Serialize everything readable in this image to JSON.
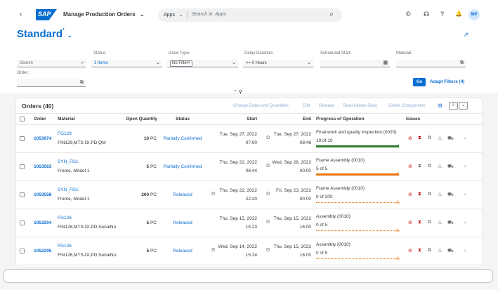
{
  "shell": {
    "back_icon": "‹",
    "logo_text": "SAP",
    "app_title": "Manage Production Orders",
    "title_chevron": "⌄",
    "search_scope": "Apps",
    "search_scope_chevron": "⌄",
    "search_placeholder": "Search in: Apps",
    "search_icon": "⌕",
    "icons": [
      "©",
      "☊",
      "?",
      "🔔"
    ],
    "avatar": "MP"
  },
  "variant": {
    "title": "Standard",
    "modified": "*",
    "chevron": "⌄",
    "share_icon": "⇗"
  },
  "filters": {
    "search": {
      "placeholder": "Search",
      "icon": "⌕"
    },
    "status": {
      "label": "Status:",
      "value": "3 Items",
      "icon": "⌄"
    },
    "issue_type": {
      "label": "Issue Type:",
      "token": "No Filter",
      "token_close": "×",
      "icon": "⌄"
    },
    "delay": {
      "label": "Delay Duration:",
      "value": ">= 0 Hours",
      "icon": "⌄"
    },
    "scheduled_start": {
      "label": "Scheduled Start:",
      "icon": "▦"
    },
    "material": {
      "label": "Material:",
      "icon": "⧉"
    },
    "order": {
      "label": "Order:",
      "icon": "⧉"
    },
    "go": "Go",
    "adapt": "Adapt Filters (4)",
    "collapse_icons": "⌃ ⚲"
  },
  "table": {
    "title": "Orders (40)",
    "toolbar": [
      "Change Dates and Quantities",
      "Edit",
      "Release",
      "Read Master Data",
      "Check Components"
    ],
    "gear_icon": "⚙",
    "export_icon": "⇩",
    "menu_icon": "⌄",
    "columns": {
      "order": "Order",
      "material": "Material",
      "open_qty": "Open Quantity",
      "status": "Status",
      "start": "Start",
      "end": "End",
      "progress": "Progress of Operation",
      "issues": "Issues"
    },
    "rows": [
      {
        "order": "1053974",
        "material": "FG129",
        "material_desc": "FIN129,MTS-DI,PD,QM",
        "qty": "10",
        "unit": "PC",
        "status": "Partially Confirmed",
        "start_date": "Tue, Sep 27, 2022",
        "start_time": "07:00",
        "end_date": "Tue, Sep 27, 2022",
        "end_time": "08:48",
        "operation": "Final work and quality inspection (0020)",
        "progress_text": "10 of 10",
        "progress": 1.0,
        "progress_color": "#2b7d2b",
        "progress_status": "✔",
        "status_color": "#2b7d2b",
        "start_clock": false,
        "end_clock": true
      },
      {
        "order": "1053563",
        "material": "SYN_FG1",
        "material_desc": "Frame, Model 1",
        "qty": "5",
        "unit": "PC",
        "status": "Partially Confirmed",
        "start_date": "Thu, Sep 22, 2022",
        "start_time": "06:44",
        "end_date": "Wed, Sep 28, 2022",
        "end_time": "00:00",
        "operation": "Frame Assembly (0010)",
        "progress_text": "5 of 5",
        "progress": 1.0,
        "progress_color": "#e9730c",
        "progress_status": "⚠",
        "status_color": "#e9730c",
        "start_clock": false,
        "end_clock": true
      },
      {
        "order": "1053558",
        "material": "SYN_FG1",
        "material_desc": "Frame, Model 1",
        "qty": "200",
        "unit": "PC",
        "status": "Released",
        "start_date": "Thu, Sep 22, 2022",
        "start_time": "22:20",
        "end_date": "Fri, Sep 23, 2022",
        "end_time": "00:00",
        "operation": "Frame Assembly (0010)",
        "progress_text": "0 of 200",
        "progress": 0,
        "progress_color": "#e9730c",
        "progress_status": "⚠",
        "status_color": "#e9730c",
        "start_clock": true,
        "end_clock": true
      },
      {
        "order": "1053204",
        "material": "FG126",
        "material_desc": "FIN126,MTS-DI,PD,SerialNo",
        "qty": "5",
        "unit": "PC",
        "status": "Released",
        "start_date": "Thu, Sep 15, 2022",
        "start_time": "15:23",
        "end_date": "Thu, Sep 15, 2022",
        "end_time": "16:00",
        "operation": "Assembly (0010)",
        "progress_text": "0 of 5",
        "progress": 0,
        "progress_color": "#e9730c",
        "progress_status": "⚠",
        "status_color": "#e9730c",
        "start_clock": false,
        "end_clock": true
      },
      {
        "order": "1053205",
        "material": "FG126",
        "material_desc": "FIN126,MTS-DI,PD,SerialNo",
        "qty": "5",
        "unit": "PC",
        "status": "Released",
        "start_date": "Wed, Sep 14, 2022",
        "start_time": "15:24",
        "end_date": "Thu, Sep 15, 2022",
        "end_time": "16:00",
        "operation": "Assembly (0010)",
        "progress_text": "0 of 5",
        "progress": 0,
        "progress_color": "#e9730c",
        "progress_status": "⚠",
        "status_color": "#e9730c",
        "start_clock": true,
        "end_clock": true
      }
    ],
    "issue_icons": [
      {
        "glyph": "⊘",
        "color": "#bb0000"
      },
      {
        "glyph": "⧗",
        "color": "#bb0000"
      },
      {
        "glyph": "⧉",
        "color": "#6a6d70"
      },
      {
        "glyph": "⚠",
        "color": "#6a6d70"
      },
      {
        "glyph": "⛟",
        "color": "#6a6d70"
      }
    ],
    "row_chevron": "›"
  },
  "colors": {
    "brand": "#0a6ed1",
    "error": "#bb0000",
    "success": "#2b7d2b",
    "warning": "#e9730c"
  }
}
